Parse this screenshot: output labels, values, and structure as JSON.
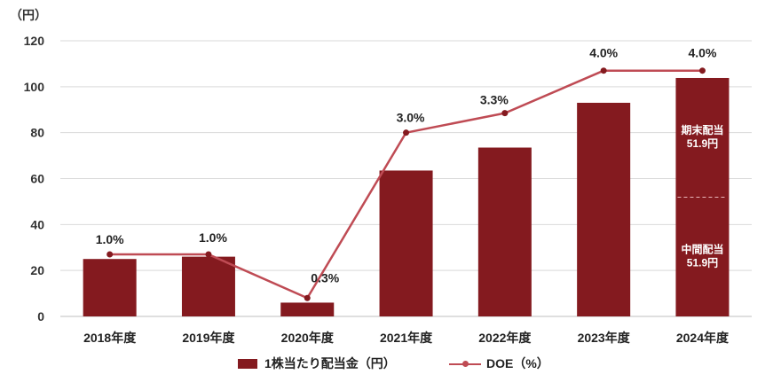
{
  "unit_label": "（円）",
  "colors": {
    "bar": "#841A1F",
    "line": "#BF4B54",
    "grid": "#d9d9d9",
    "split": "#e8b6b9"
  },
  "chart_data": {
    "type": "bar+line",
    "categories": [
      "2018年度",
      "2019年度",
      "2020年度",
      "2021年度",
      "2022年度",
      "2023年度",
      "2024年度"
    ],
    "ylim": [
      0,
      120
    ],
    "yticks": [
      "0",
      "20",
      "40",
      "60",
      "80",
      "100",
      "120"
    ],
    "ytick_values": [
      0,
      20,
      40,
      60,
      80,
      100,
      120
    ],
    "grid": true,
    "legend_position": "bottom",
    "series": [
      {
        "name": "1株当たり配当金（円）",
        "type": "bar",
        "values": [
          25,
          26,
          6,
          63.5,
          73.5,
          93,
          103.8
        ],
        "stacked_last": [
          {
            "label_line1": "中間配当",
            "label_line2": "51.9円",
            "value": 51.9
          },
          {
            "label_line1": "期末配当",
            "label_line2": "51.9円",
            "value": 51.9
          }
        ]
      },
      {
        "name": "DOE（%）",
        "type": "line",
        "display_values": [
          27,
          27,
          8,
          80,
          88.5,
          107,
          107
        ],
        "labels": [
          "1.0%",
          "1.0%",
          "0.3%",
          "3.0%",
          "3.3%",
          "4.0%",
          "4.0%"
        ]
      }
    ]
  }
}
